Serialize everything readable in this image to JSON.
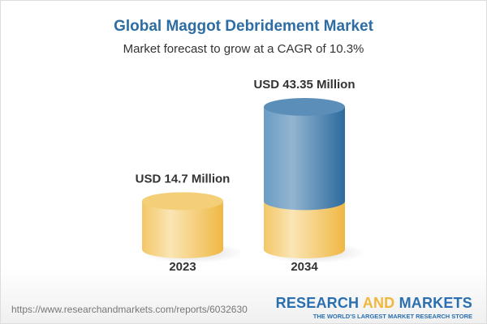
{
  "title": "Global Maggot Debridement Market",
  "subtitle": "Market forecast to grow at a CAGR of 10.3%",
  "chart_data": {
    "type": "bar",
    "style": "3d-cylinder",
    "categories": [
      "2023",
      "2034"
    ],
    "values": [
      14.7,
      43.35
    ],
    "unit": "USD Million",
    "data_labels": [
      "USD 14.7 Million",
      "USD 43.35 Million"
    ],
    "colors": {
      "base": "#f2c14e",
      "growth": "#3f78ab"
    }
  },
  "footer": {
    "url": "https://www.researchandmarkets.com/reports/6032630",
    "logo": {
      "part1": "RESEARCH ",
      "part2": "AND",
      "part3": " MARKETS",
      "tagline": "THE WORLD'S LARGEST MARKET RESEARCH STORE"
    }
  }
}
